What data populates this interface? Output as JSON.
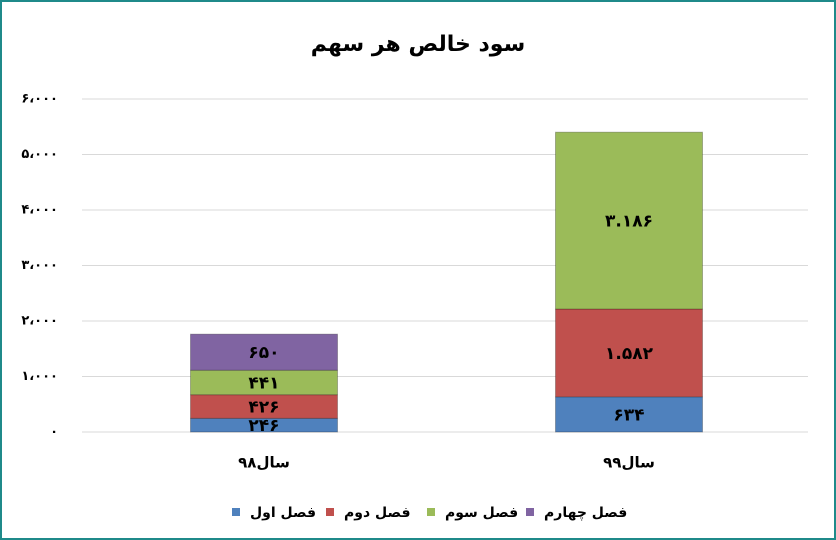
{
  "chart_data": {
    "type": "stacked_bar",
    "title": "سود خالص هر سهم",
    "categories": [
      "سال۹۸",
      "سال۹۹"
    ],
    "series": [
      {
        "name": "فصل اول",
        "color": "#4f81bd",
        "values": [
          246,
          634
        ],
        "value_labels": [
          "۲۴۶",
          "۶۳۴"
        ]
      },
      {
        "name": "فصل دوم",
        "color": "#c0504d",
        "values": [
          426,
          1582
        ],
        "value_labels": [
          "۴۲۶",
          "۱.۵۸۲"
        ]
      },
      {
        "name": "فصل سوم",
        "color": "#9bbb59",
        "values": [
          441,
          3186
        ],
        "value_labels": [
          "۴۴۱",
          "۳.۱۸۶"
        ]
      },
      {
        "name": "فصل چهارم",
        "color": "#8064a2",
        "values": [
          650,
          null
        ],
        "value_labels": [
          "۶۵۰",
          null
        ]
      }
    ],
    "ylim": [
      0,
      6000
    ],
    "yticks": [
      {
        "value": 0,
        "label": "۰"
      },
      {
        "value": 1000,
        "label": "۱،۰۰۰"
      },
      {
        "value": 2000,
        "label": "۲،۰۰۰"
      },
      {
        "value": 3000,
        "label": "۳،۰۰۰"
      },
      {
        "value": 4000,
        "label": "۴،۰۰۰"
      },
      {
        "value": 5000,
        "label": "۵،۰۰۰"
      },
      {
        "value": 6000,
        "label": "۶،۰۰۰"
      }
    ],
    "grid": true,
    "legend": "bottom"
  }
}
